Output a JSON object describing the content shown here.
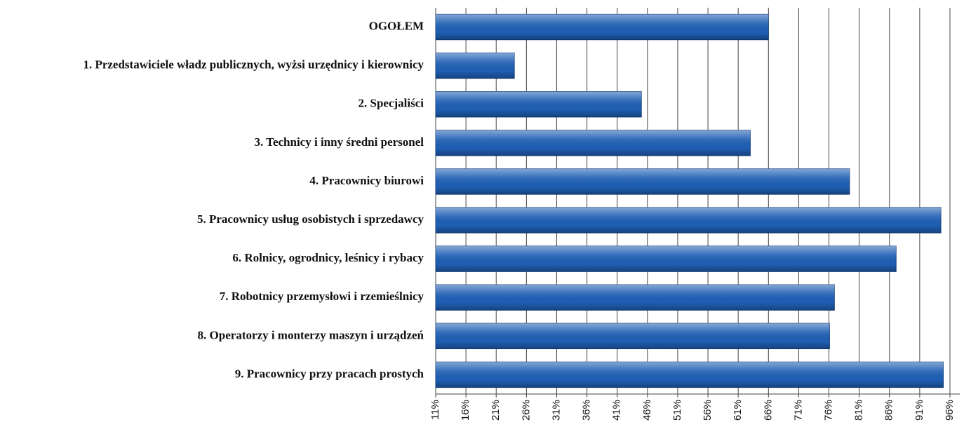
{
  "chart_data": {
    "type": "barh",
    "categories": [
      "OGOŁEM",
      "1. Przedstawiciele władz publicznych, wyżsi urzędnicy i kierownicy",
      "2. Specjaliści",
      "3. Technicy i inny średni personel",
      "4. Pracownicy biurowi",
      "5. Pracownicy usług osobistych i sprzedawcy",
      "6. Rolnicy, ogrodnicy, leśnicy i rybacy",
      "7. Robotnicy przemysłowi i rzemieślnicy",
      "8. Operatorzy i monterzy maszyn i urządzeń",
      "9. Pracownicy przy pracach prostych"
    ],
    "values": [
      66,
      24,
      45,
      63,
      79.4,
      94.5,
      87.1,
      76.9,
      76.1,
      94.9
    ],
    "color": "#1f5fb4",
    "xlim": [
      11,
      96
    ],
    "xticks": [
      {
        "value": 11,
        "label": "11%"
      },
      {
        "value": 16,
        "label": "16%"
      },
      {
        "value": 21,
        "label": "21%"
      },
      {
        "value": 26,
        "label": "26%"
      },
      {
        "value": 31,
        "label": "31%"
      },
      {
        "value": 36,
        "label": "36%"
      },
      {
        "value": 41,
        "label": "41%"
      },
      {
        "value": 46,
        "label": "46%"
      },
      {
        "value": 51,
        "label": "51%"
      },
      {
        "value": 56,
        "label": "56%"
      },
      {
        "value": 61,
        "label": "61%"
      },
      {
        "value": 66,
        "label": "66%"
      },
      {
        "value": 71,
        "label": "71%"
      },
      {
        "value": 76,
        "label": "76%"
      },
      {
        "value": 81,
        "label": "81%"
      },
      {
        "value": 86,
        "label": "86%"
      },
      {
        "value": 91,
        "label": "91%"
      },
      {
        "value": 96,
        "label": "96%"
      }
    ],
    "grid": true
  }
}
